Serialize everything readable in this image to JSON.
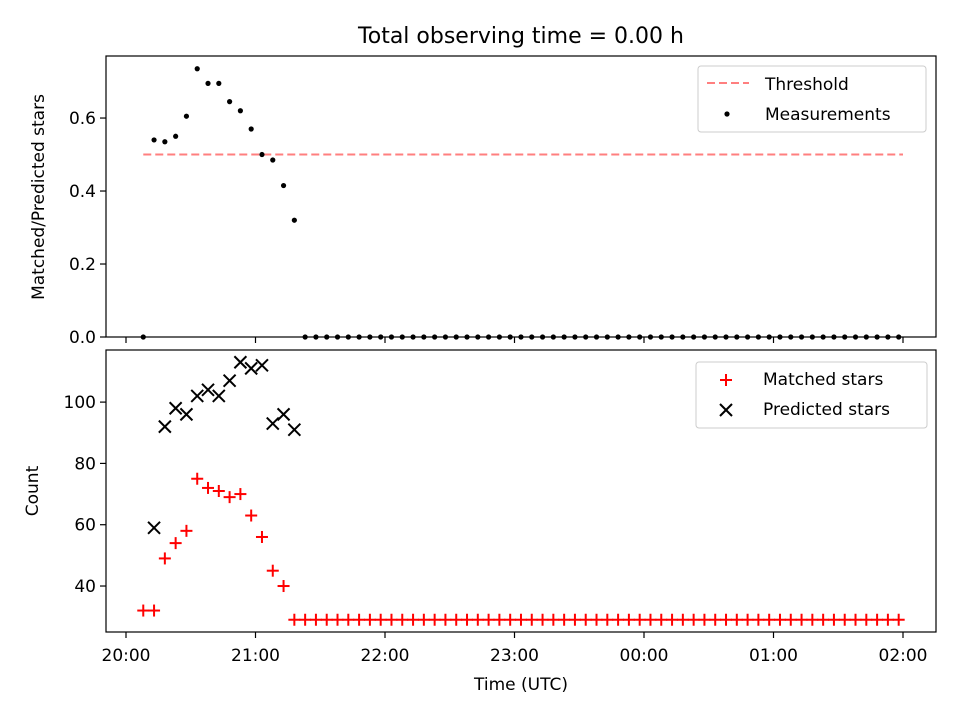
{
  "figure": {
    "title": "Total observing time = 0.00 h"
  },
  "chart_data": [
    {
      "type": "scatter",
      "panel": "top",
      "ylabel": "Matched/Predicted stars",
      "xlabel": "",
      "ylim": [
        0,
        0.77
      ],
      "yticks": [
        0.0,
        0.2,
        0.4,
        0.6
      ],
      "ytick_labels": [
        "0.0",
        "0.2",
        "0.4",
        "0.6"
      ],
      "xlim": [
        "20:00",
        "02:00"
      ],
      "grid": false,
      "legend_position": "top-right",
      "series": [
        {
          "name": "Threshold",
          "kind": "line",
          "style": "dashed",
          "color": "#ff7f7f",
          "x": [
            "20:08",
            "02:00"
          ],
          "y": [
            0.5,
            0.5
          ]
        },
        {
          "name": "Measurements",
          "kind": "scatter",
          "marker": "dot",
          "color": "#000000",
          "x": [
            "20:08",
            "20:13",
            "20:18",
            "20:23",
            "20:28",
            "20:33",
            "20:38",
            "20:43",
            "20:48",
            "20:53",
            "20:58",
            "21:03",
            "21:08",
            "21:13",
            "21:18",
            "21:23",
            "21:28",
            "21:33",
            "21:38",
            "21:43",
            "21:48",
            "21:53",
            "21:58",
            "22:03",
            "22:08",
            "22:13",
            "22:18",
            "22:23",
            "22:28",
            "22:33",
            "22:38",
            "22:43",
            "22:48",
            "22:53",
            "22:58",
            "23:03",
            "23:08",
            "23:13",
            "23:18",
            "23:23",
            "23:28",
            "23:33",
            "23:38",
            "23:43",
            "23:48",
            "23:53",
            "23:58",
            "00:03",
            "00:08",
            "00:13",
            "00:18",
            "00:23",
            "00:28",
            "00:33",
            "00:38",
            "00:43",
            "00:48",
            "00:53",
            "00:58",
            "01:03",
            "01:08",
            "01:13",
            "01:18",
            "01:23",
            "01:28",
            "01:33",
            "01:38",
            "01:43",
            "01:48",
            "01:53",
            "01:58"
          ],
          "y": [
            0.0,
            0.54,
            0.535,
            0.55,
            0.605,
            0.735,
            0.695,
            0.695,
            0.645,
            0.62,
            0.57,
            0.5,
            0.485,
            0.415,
            0.32,
            0.0,
            0.0,
            0.0,
            0.0,
            0.0,
            0.0,
            0.0,
            0.0,
            0.0,
            0.0,
            0.0,
            0.0,
            0.0,
            0.0,
            0.0,
            0.0,
            0.0,
            0.0,
            0.0,
            0.0,
            0.0,
            0.0,
            0.0,
            0.0,
            0.0,
            0.0,
            0.0,
            0.0,
            0.0,
            0.0,
            0.0,
            0.0,
            0.0,
            0.0,
            0.0,
            0.0,
            0.0,
            0.0,
            0.0,
            0.0,
            0.0,
            0.0,
            0.0,
            0.0,
            0.0,
            0.0,
            0.0,
            0.0,
            0.0,
            0.0,
            0.0,
            0.0,
            0.0,
            0.0,
            0.0,
            0.0
          ]
        }
      ]
    },
    {
      "type": "scatter",
      "panel": "bottom",
      "xlabel": "Time (UTC)",
      "ylabel": "Count",
      "ylim": [
        25,
        117
      ],
      "yticks": [
        40,
        60,
        80,
        100
      ],
      "ytick_labels": [
        "40",
        "60",
        "80",
        "100"
      ],
      "xlim": [
        "20:00",
        "02:00"
      ],
      "xticks": [
        "20:00",
        "21:00",
        "22:00",
        "23:00",
        "00:00",
        "01:00",
        "02:00"
      ],
      "xtick_labels": [
        "20:00",
        "21:00",
        "22:00",
        "23:00",
        "00:00",
        "01:00",
        "02:00"
      ],
      "grid": false,
      "legend_position": "top-right",
      "series": [
        {
          "name": "Matched stars",
          "marker": "plus",
          "color": "#ff0000",
          "x": [
            "20:08",
            "20:13",
            "20:18",
            "20:23",
            "20:28",
            "20:33",
            "20:38",
            "20:43",
            "20:48",
            "20:53",
            "20:58",
            "21:03",
            "21:08",
            "21:13",
            "21:18",
            "21:23",
            "21:28",
            "21:33",
            "21:38",
            "21:43",
            "21:48",
            "21:53",
            "21:58",
            "22:03",
            "22:08",
            "22:13",
            "22:18",
            "22:23",
            "22:28",
            "22:33",
            "22:38",
            "22:43",
            "22:48",
            "22:53",
            "22:58",
            "23:03",
            "23:08",
            "23:13",
            "23:18",
            "23:23",
            "23:28",
            "23:33",
            "23:38",
            "23:43",
            "23:48",
            "23:53",
            "23:58",
            "00:03",
            "00:08",
            "00:13",
            "00:18",
            "00:23",
            "00:28",
            "00:33",
            "00:38",
            "00:43",
            "00:48",
            "00:53",
            "00:58",
            "01:03",
            "01:08",
            "01:13",
            "01:18",
            "01:23",
            "01:28",
            "01:33",
            "01:38",
            "01:43",
            "01:48",
            "01:53",
            "01:58"
          ],
          "y": [
            32,
            32,
            49,
            54,
            58,
            75,
            72,
            71,
            69,
            70,
            63,
            56,
            45,
            40,
            29,
            29,
            29,
            29,
            29,
            29,
            29,
            29,
            29,
            29,
            29,
            29,
            29,
            29,
            29,
            29,
            29,
            29,
            29,
            29,
            29,
            29,
            29,
            29,
            29,
            29,
            29,
            29,
            29,
            29,
            29,
            29,
            29,
            29,
            29,
            29,
            29,
            29,
            29,
            29,
            29,
            29,
            29,
            29,
            29,
            29,
            29,
            29,
            29,
            29,
            29,
            29,
            29,
            29,
            29,
            29,
            29
          ]
        },
        {
          "name": "Predicted stars",
          "marker": "x",
          "color": "#000000",
          "x": [
            "20:13",
            "20:18",
            "20:23",
            "20:28",
            "20:33",
            "20:38",
            "20:43",
            "20:48",
            "20:53",
            "20:58",
            "21:03",
            "21:08",
            "21:13",
            "21:18"
          ],
          "y": [
            59,
            92,
            98,
            96,
            102,
            104,
            102,
            107,
            113,
            111,
            112,
            93,
            96,
            91
          ]
        }
      ]
    }
  ]
}
